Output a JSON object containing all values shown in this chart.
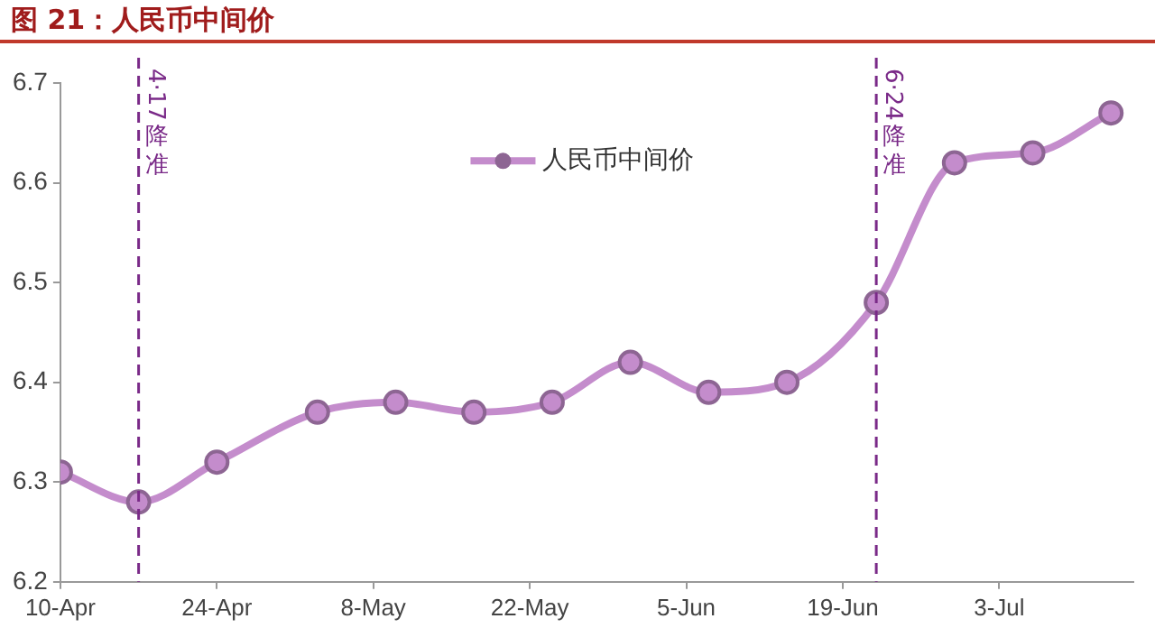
{
  "chart_data": {
    "type": "line",
    "title": "图 21：人民币中间价",
    "x": [
      "--04-10",
      "--04-17",
      "--04-24",
      "--05-03",
      "--05-10",
      "--05-17",
      "--05-24",
      "--05-31",
      "--06-07",
      "--06-14",
      "--06-22",
      "--06-29",
      "--07-06",
      "--07-13"
    ],
    "series": [
      {
        "name": "人民币中间价",
        "color": "#c48ccc",
        "values": [
          6.31,
          6.28,
          6.32,
          6.37,
          6.38,
          6.37,
          6.38,
          6.42,
          6.39,
          6.4,
          6.48,
          6.62,
          6.63,
          6.67
        ]
      }
    ],
    "xlim": [
      "--04-10",
      "--07-15"
    ],
    "xticks": [
      {
        "value": "--04-10",
        "label": "10-Apr"
      },
      {
        "value": "--04-24",
        "label": "24-Apr"
      },
      {
        "value": "--05-08",
        "label": "8-May"
      },
      {
        "value": "--05-22",
        "label": "22-May"
      },
      {
        "value": "--06-05",
        "label": "5-Jun"
      },
      {
        "value": "--06-19",
        "label": "19-Jun"
      },
      {
        "value": "--07-03",
        "label": "3-Jul"
      }
    ],
    "ylim": [
      6.2,
      6.7
    ],
    "yticks": [
      6.2,
      6.3,
      6.4,
      6.5,
      6.6,
      6.7
    ],
    "ref_lines": [
      {
        "axis": "x",
        "value": "--04-17",
        "label": "4·17降准",
        "color": "#7a2a88",
        "line_style": "dashed"
      },
      {
        "axis": "x",
        "value": "--06-22",
        "label": "6·24降准",
        "color": "#7a2a88",
        "line_style": "dashed"
      }
    ],
    "grid": false,
    "legend": "top",
    "marker": "circle",
    "line_style": "solid"
  }
}
